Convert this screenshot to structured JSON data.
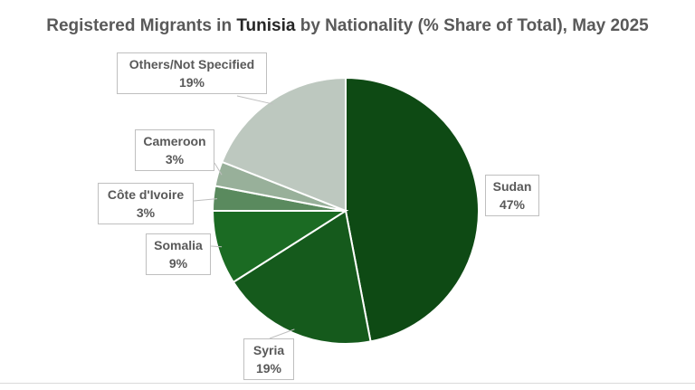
{
  "chart_data": {
    "type": "pie",
    "title": {
      "before": "Registered Migrants in ",
      "highlight": "Tunisia",
      "after": " by Nationality (% Share of Total), May 2025"
    },
    "slices": [
      {
        "label": "Sudan",
        "value": 47,
        "display": "47%",
        "color": "#0e4a14"
      },
      {
        "label": "Syria",
        "value": 19,
        "display": "19%",
        "color": "#155a1c"
      },
      {
        "label": "Somalia",
        "value": 9,
        "display": "9%",
        "color": "#1b6b23"
      },
      {
        "label": "Côte d'Ivoire",
        "value": 3,
        "display": "3%",
        "color": "#5a8a5e"
      },
      {
        "label": "Cameroon",
        "value": 3,
        "display": "3%",
        "color": "#98b09a"
      },
      {
        "label": "Others/Not Specified",
        "value": 19,
        "display": "19%",
        "color": "#bdc8bf"
      }
    ],
    "legend": "none"
  }
}
